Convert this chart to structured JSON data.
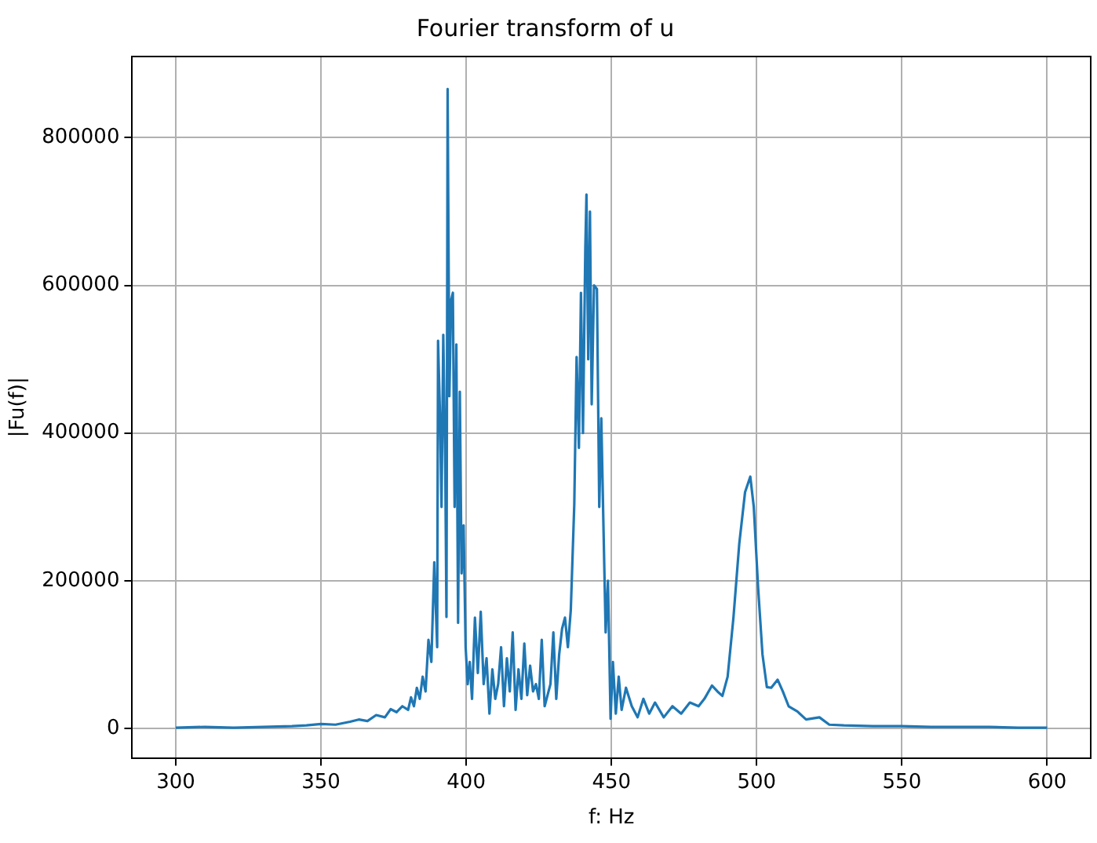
{
  "chart_data": {
    "type": "line",
    "title": "Fourier transform of u",
    "xlabel": "f: Hz",
    "ylabel": "|Fu(f)|",
    "x": [
      300,
      310,
      320,
      330,
      340,
      345,
      350,
      355,
      360,
      363,
      366,
      369,
      372,
      374,
      376,
      378,
      380,
      381,
      382,
      383,
      384,
      385,
      386,
      387,
      388,
      389,
      390,
      390.3,
      391,
      391.5,
      392.1,
      392.8,
      393.2,
      393.6,
      394.2,
      394.8,
      395.4,
      396,
      396.6,
      397.2,
      397.8,
      398.4,
      399.1,
      399.8,
      400.5,
      401.2,
      402,
      403,
      404,
      405,
      406,
      407,
      408,
      409,
      410,
      411,
      412,
      413,
      414,
      415,
      416,
      417,
      418,
      419,
      420,
      421,
      422,
      423,
      424,
      425,
      426,
      427,
      428,
      429,
      430,
      431,
      432,
      433,
      434,
      435,
      436,
      437.2,
      438,
      438.8,
      439.5,
      440.2,
      441,
      441.4,
      442,
      442.6,
      443.2,
      444,
      445,
      445.8,
      446.5,
      447.3,
      448,
      448.8,
      449.7,
      450.5,
      451.5,
      452.5,
      453.5,
      455,
      457,
      459,
      461,
      463,
      465,
      468,
      471,
      474,
      477,
      480,
      482,
      484.6,
      486.5,
      488.2,
      490,
      492,
      494,
      496,
      497.8,
      499,
      500.5,
      502,
      503.5,
      505,
      507.2,
      509,
      511,
      514,
      517,
      521.6,
      525,
      530,
      540,
      550,
      560,
      570,
      580,
      590,
      600
    ],
    "values": [
      1000,
      2000,
      1000,
      2000,
      3000,
      4000,
      6000,
      5000,
      9000,
      12000,
      10000,
      18000,
      15000,
      26000,
      22000,
      30000,
      25000,
      42000,
      30000,
      55000,
      40000,
      70000,
      50000,
      120000,
      90000,
      225000,
      110000,
      525000,
      420000,
      300000,
      533000,
      350000,
      151000,
      866000,
      450000,
      580000,
      590000,
      300000,
      520000,
      143000,
      456000,
      210000,
      275000,
      110000,
      60000,
      90000,
      40000,
      150000,
      75000,
      158000,
      60000,
      95000,
      20000,
      80000,
      40000,
      60000,
      110000,
      30000,
      95000,
      50000,
      130000,
      25000,
      80000,
      40000,
      115000,
      45000,
      85000,
      50000,
      60000,
      40000,
      120000,
      30000,
      45000,
      60000,
      130000,
      40000,
      100000,
      135000,
      150000,
      110000,
      160000,
      303000,
      503000,
      380000,
      590000,
      400000,
      650000,
      723000,
      500000,
      700000,
      439000,
      600000,
      595000,
      300000,
      420000,
      264000,
      130000,
      200000,
      13000,
      90000,
      20000,
      70000,
      25000,
      55000,
      30000,
      15000,
      40000,
      20000,
      35000,
      15000,
      30000,
      20000,
      35000,
      30000,
      40000,
      58000,
      50000,
      44000,
      70000,
      150000,
      250000,
      320000,
      341000,
      300000,
      190000,
      100000,
      56000,
      55000,
      66000,
      50000,
      30000,
      23000,
      12000,
      15000,
      5000,
      4000,
      3000,
      3000,
      2000,
      2000,
      2000,
      1000,
      1000
    ],
    "color": "#1f77b4",
    "xlim": [
      285,
      615
    ],
    "xticks": [
      300,
      350,
      400,
      450,
      500,
      550,
      600
    ],
    "ylim": [
      -40000,
      910000
    ],
    "yticks": [
      0,
      200000,
      400000,
      600000,
      800000
    ],
    "grid": true,
    "marker": "none",
    "line_style": "solid"
  }
}
